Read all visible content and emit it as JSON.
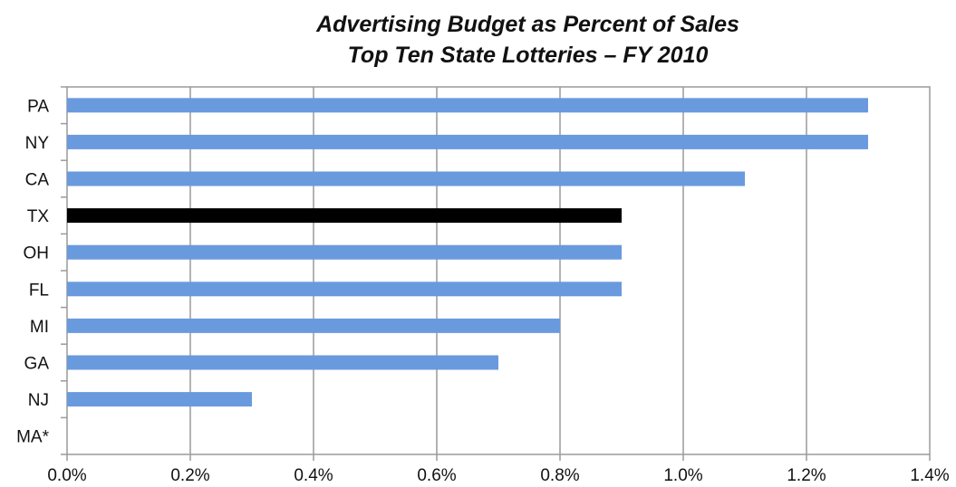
{
  "chart_data": {
    "type": "bar",
    "orientation": "horizontal",
    "title": "Advertising Budget as Percent of Sales",
    "subtitle": "Top Ten State Lotteries – FY 2010",
    "xlabel": "",
    "ylabel": "",
    "categories": [
      "PA",
      "NY",
      "CA",
      "TX",
      "OH",
      "FL",
      "MI",
      "GA",
      "NJ",
      "MA*"
    ],
    "values": [
      1.3,
      1.3,
      1.1,
      0.9,
      0.9,
      0.9,
      0.8,
      0.7,
      0.3,
      0
    ],
    "value_unit": "%",
    "xlim": [
      0,
      1.4
    ],
    "x_ticks": [
      "0.0%",
      "0.2%",
      "0.4%",
      "0.6%",
      "0.8%",
      "1.0%",
      "1.2%",
      "1.4%"
    ],
    "grid": "vertical",
    "highlight_category": "TX",
    "colors": {
      "bar": "#6a9ade",
      "highlight": "#000000",
      "grid": "#9a9a9a",
      "frame": "#9a9a9a",
      "text": "#111111"
    }
  }
}
